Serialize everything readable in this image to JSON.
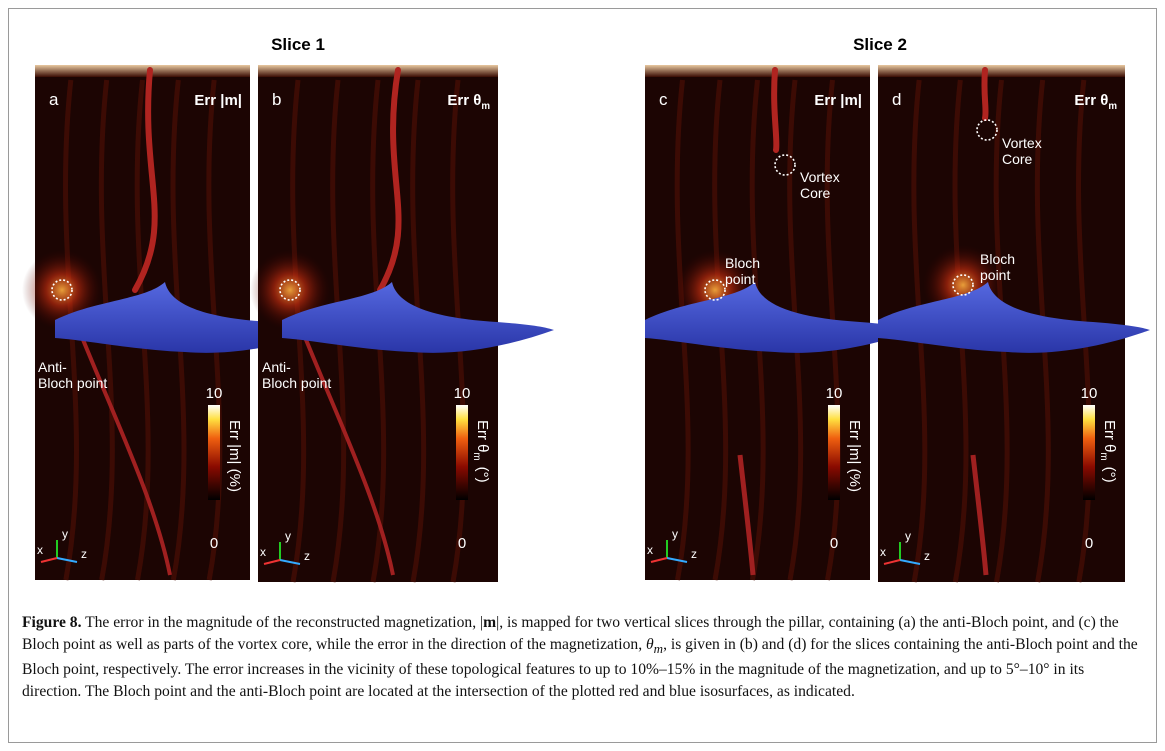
{
  "figure": {
    "titles": [
      "Slice 1",
      "Slice 2"
    ],
    "axes": [
      "x",
      "y",
      "z"
    ],
    "panels": [
      {
        "label": "a",
        "corner": {
          "text": "Err |m|"
        },
        "colorbar": {
          "max": 10,
          "min": 0,
          "label": {
            "text": "Err |m| (%)"
          }
        },
        "annotations": [
          {
            "lines": [
              "Anti-",
              "Bloch point"
            ]
          }
        ]
      },
      {
        "label": "b",
        "corner": {
          "text": "Err θ",
          "sub": "m"
        },
        "colorbar": {
          "max": 10,
          "min": 0,
          "label": {
            "text": "Err θ",
            "sub": "m",
            "unit": "(°)"
          }
        },
        "annotations": [
          {
            "lines": [
              "Anti-",
              "Bloch point"
            ]
          }
        ]
      },
      {
        "label": "c",
        "corner": {
          "text": "Err |m|"
        },
        "colorbar": {
          "max": 10,
          "min": 0,
          "label": {
            "text": "Err |m| (%)"
          }
        },
        "annotations": [
          {
            "lines": [
              "Vortex",
              "Core"
            ]
          },
          {
            "lines": [
              "Bloch",
              "point"
            ]
          }
        ]
      },
      {
        "label": "d",
        "corner": {
          "text": "Err θ",
          "sub": "m"
        },
        "colorbar": {
          "max": 10,
          "min": 0,
          "label": {
            "text": "Err θ",
            "sub": "m",
            "unit": "(°)"
          }
        },
        "annotations": [
          {
            "lines": [
              "Vortex",
              "Core"
            ]
          },
          {
            "lines": [
              "Bloch",
              "point"
            ]
          }
        ]
      }
    ],
    "caption": {
      "label": "Figure 8.",
      "parts": [
        {
          "text": " The error in the magnitude of the reconstructed magnetization, |"
        },
        {
          "text": "m",
          "style": "bold"
        },
        {
          "text": "|, is mapped for two vertical slices through the pillar, containing (a) the anti-Bloch point, and (c) the Bloch point as well as parts of the vortex core, while the error in the direction of the magnetization, "
        },
        {
          "text": "θ",
          "style": "italic"
        },
        {
          "text": "m",
          "style": "sub"
        },
        {
          "text": ", is given in (b) and (d) for the slices containing the anti-Bloch point and the Bloch point, respectively. The error increases in the vicinity of these topological features to up to 10%–15% in the magnitude of the magnetization, and up to 5°–10° in its direction. The Bloch point and the anti-Bloch point are located at the intersection of the plotted red and blue isosurfaces, as indicated."
        }
      ]
    }
  }
}
